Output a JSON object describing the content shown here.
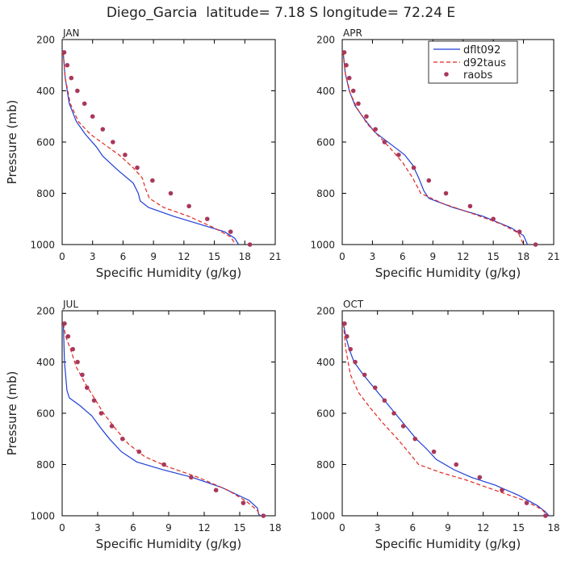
{
  "title": "Diego_Garcia  latitude= 7.18 S longitude= 72.24 E",
  "legend": {
    "entries": [
      "dflt092",
      "d92taus",
      "raobs"
    ]
  },
  "colors": {
    "dflt092": "#1f3fd6",
    "d92taus": "#e0281e",
    "raobs": "#a8385a",
    "axis": "#000000"
  },
  "chart_data": [
    {
      "type": "line",
      "panel": "JAN",
      "xlabel": "Specific Humidity (g/kg)",
      "ylabel": "Pressure (mb)",
      "xlim": [
        0,
        21
      ],
      "ylim": [
        200,
        1000
      ],
      "xticks": [
        0,
        3,
        6,
        9,
        12,
        15,
        18,
        21
      ],
      "yticks": [
        200,
        400,
        600,
        800,
        1000
      ],
      "series": [
        {
          "name": "dflt092",
          "style": "solid",
          "points": [
            [
              0.1,
              250
            ],
            [
              0.3,
              350
            ],
            [
              0.7,
              450
            ],
            [
              1.4,
              520
            ],
            [
              2.3,
              570
            ],
            [
              3.4,
              620
            ],
            [
              4.0,
              655
            ],
            [
              5.5,
              710
            ],
            [
              7.0,
              760
            ],
            [
              7.5,
              800
            ],
            [
              7.7,
              830
            ],
            [
              8.5,
              855
            ],
            [
              11,
              890
            ],
            [
              13.5,
              920
            ],
            [
              16.0,
              950
            ],
            [
              17.0,
              975
            ],
            [
              17.4,
              1000
            ]
          ]
        },
        {
          "name": "d92taus",
          "style": "dash",
          "points": [
            [
              0.1,
              250
            ],
            [
              0.3,
              350
            ],
            [
              0.8,
              450
            ],
            [
              1.6,
              520
            ],
            [
              2.8,
              570
            ],
            [
              4.2,
              610
            ],
            [
              5.6,
              650
            ],
            [
              7.0,
              700
            ],
            [
              7.9,
              740
            ],
            [
              8.2,
              780
            ],
            [
              8.6,
              820
            ],
            [
              10,
              855
            ],
            [
              12.5,
              890
            ],
            [
              15,
              935
            ],
            [
              16.6,
              970
            ],
            [
              17.1,
              1000
            ]
          ]
        },
        {
          "name": "raobs",
          "style": "dot",
          "points": [
            [
              0.2,
              250
            ],
            [
              0.5,
              300
            ],
            [
              0.9,
              350
            ],
            [
              1.5,
              400
            ],
            [
              2.2,
              450
            ],
            [
              3.0,
              500
            ],
            [
              4.0,
              550
            ],
            [
              5.0,
              600
            ],
            [
              6.2,
              650
            ],
            [
              7.4,
              700
            ],
            [
              8.9,
              750
            ],
            [
              10.7,
              800
            ],
            [
              12.5,
              850
            ],
            [
              14.3,
              900
            ],
            [
              16.6,
              950
            ],
            [
              18.5,
              1000
            ]
          ]
        }
      ]
    },
    {
      "type": "line",
      "panel": "APR",
      "xlabel": "Specific Humidity (g/kg)",
      "ylabel": "",
      "xlim": [
        0,
        21
      ],
      "ylim": [
        200,
        1000
      ],
      "xticks": [
        0,
        3,
        6,
        9,
        12,
        15,
        18,
        21
      ],
      "yticks": [
        200,
        400,
        600,
        800,
        1000
      ],
      "series": [
        {
          "name": "dflt092",
          "style": "solid",
          "points": [
            [
              0.1,
              250
            ],
            [
              0.3,
              330
            ],
            [
              0.7,
              400
            ],
            [
              1.3,
              460
            ],
            [
              2.2,
              510
            ],
            [
              3.2,
              560
            ],
            [
              4.2,
              590
            ],
            [
              5.2,
              620
            ],
            [
              6.2,
              650
            ],
            [
              7.0,
              690
            ],
            [
              7.6,
              740
            ],
            [
              8.1,
              790
            ],
            [
              8.6,
              820
            ],
            [
              11,
              855
            ],
            [
              14,
              890
            ],
            [
              16.8,
              935
            ],
            [
              18.0,
              965
            ],
            [
              18.4,
              1000
            ]
          ]
        },
        {
          "name": "d92taus",
          "style": "dash",
          "points": [
            [
              0.1,
              250
            ],
            [
              0.3,
              330
            ],
            [
              0.8,
              410
            ],
            [
              1.5,
              470
            ],
            [
              2.5,
              530
            ],
            [
              3.7,
              580
            ],
            [
              4.9,
              630
            ],
            [
              6.0,
              680
            ],
            [
              7.0,
              740
            ],
            [
              7.8,
              800
            ],
            [
              10,
              840
            ],
            [
              13,
              880
            ],
            [
              15.8,
              920
            ],
            [
              17.5,
              955
            ],
            [
              18.0,
              1000
            ]
          ]
        },
        {
          "name": "raobs",
          "style": "dot",
          "points": [
            [
              0.2,
              250
            ],
            [
              0.4,
              300
            ],
            [
              0.7,
              350
            ],
            [
              1.1,
              400
            ],
            [
              1.6,
              450
            ],
            [
              2.4,
              500
            ],
            [
              3.3,
              550
            ],
            [
              4.2,
              600
            ],
            [
              5.6,
              650
            ],
            [
              7.1,
              700
            ],
            [
              8.6,
              750
            ],
            [
              10.3,
              800
            ],
            [
              12.7,
              850
            ],
            [
              15.0,
              900
            ],
            [
              17.6,
              950
            ],
            [
              19.2,
              1000
            ]
          ]
        }
      ]
    },
    {
      "type": "line",
      "panel": "JUL",
      "xlabel": "Specific Humidity (g/kg)",
      "ylabel": "Pressure (mb)",
      "xlim": [
        0,
        18
      ],
      "ylim": [
        200,
        1000
      ],
      "xticks": [
        0,
        3,
        6,
        9,
        12,
        15,
        18
      ],
      "yticks": [
        200,
        400,
        600,
        800,
        1000
      ],
      "series": [
        {
          "name": "dflt092",
          "style": "solid",
          "points": [
            [
              0.1,
              250
            ],
            [
              0.2,
              400
            ],
            [
              0.4,
              510
            ],
            [
              0.6,
              540
            ],
            [
              1.5,
              570
            ],
            [
              2.5,
              610
            ],
            [
              3.3,
              660
            ],
            [
              4.0,
              700
            ],
            [
              5.0,
              750
            ],
            [
              6.3,
              790
            ],
            [
              8.5,
              820
            ],
            [
              11,
              850
            ],
            [
              13.5,
              890
            ],
            [
              15.8,
              940
            ],
            [
              16.5,
              970
            ],
            [
              16.6,
              995
            ],
            [
              16.8,
              1000
            ]
          ]
        },
        {
          "name": "d92taus",
          "style": "dash",
          "points": [
            [
              0.1,
              250
            ],
            [
              0.3,
              300
            ],
            [
              0.7,
              350
            ],
            [
              1.2,
              420
            ],
            [
              1.9,
              480
            ],
            [
              2.7,
              540
            ],
            [
              3.5,
              600
            ],
            [
              4.5,
              660
            ],
            [
              5.6,
              720
            ],
            [
              7.0,
              770
            ],
            [
              9.0,
              810
            ],
            [
              11.5,
              850
            ],
            [
              14,
              900
            ],
            [
              15.6,
              945
            ],
            [
              16.5,
              980
            ],
            [
              16.7,
              1000
            ]
          ]
        },
        {
          "name": "raobs",
          "style": "dot",
          "points": [
            [
              0.2,
              250
            ],
            [
              0.5,
              300
            ],
            [
              0.9,
              350
            ],
            [
              1.3,
              400
            ],
            [
              1.7,
              450
            ],
            [
              2.1,
              500
            ],
            [
              2.7,
              550
            ],
            [
              3.3,
              600
            ],
            [
              4.2,
              650
            ],
            [
              5.1,
              700
            ],
            [
              6.5,
              750
            ],
            [
              8.6,
              800
            ],
            [
              10.9,
              850
            ],
            [
              13.0,
              900
            ],
            [
              15.3,
              950
            ],
            [
              17.0,
              1000
            ]
          ]
        }
      ]
    },
    {
      "type": "line",
      "panel": "OCT",
      "xlabel": "Specific Humidity (g/kg)",
      "ylabel": "",
      "xlim": [
        0,
        18
      ],
      "ylim": [
        200,
        1000
      ],
      "xticks": [
        0,
        3,
        6,
        9,
        12,
        15,
        18
      ],
      "yticks": [
        200,
        400,
        600,
        800,
        1000
      ],
      "series": [
        {
          "name": "dflt092",
          "style": "solid",
          "points": [
            [
              0.1,
              250
            ],
            [
              0.3,
              300
            ],
            [
              0.6,
              350
            ],
            [
              1.0,
              400
            ],
            [
              1.8,
              450
            ],
            [
              2.7,
              500
            ],
            [
              3.6,
              550
            ],
            [
              4.5,
              600
            ],
            [
              5.4,
              650
            ],
            [
              6.3,
              700
            ],
            [
              7.2,
              740
            ],
            [
              8.0,
              780
            ],
            [
              9.5,
              820
            ],
            [
              11,
              850
            ],
            [
              13,
              880
            ],
            [
              15,
              920
            ],
            [
              16.6,
              960
            ],
            [
              17.3,
              985
            ],
            [
              17.6,
              1000
            ]
          ]
        },
        {
          "name": "d92taus",
          "style": "dash",
          "points": [
            [
              0.1,
              250
            ],
            [
              0.3,
              350
            ],
            [
              0.7,
              450
            ],
            [
              1.4,
              520
            ],
            [
              2.4,
              580
            ],
            [
              3.5,
              640
            ],
            [
              4.7,
              700
            ],
            [
              5.8,
              760
            ],
            [
              6.5,
              800
            ],
            [
              8.3,
              830
            ],
            [
              10.5,
              860
            ],
            [
              13,
              900
            ],
            [
              15.5,
              940
            ],
            [
              17.0,
              975
            ],
            [
              17.5,
              1000
            ]
          ]
        },
        {
          "name": "raobs",
          "style": "dot",
          "points": [
            [
              0.2,
              250
            ],
            [
              0.4,
              300
            ],
            [
              0.7,
              350
            ],
            [
              1.1,
              400
            ],
            [
              1.9,
              450
            ],
            [
              2.8,
              500
            ],
            [
              3.6,
              550
            ],
            [
              4.4,
              600
            ],
            [
              5.2,
              650
            ],
            [
              6.2,
              700
            ],
            [
              7.8,
              750
            ],
            [
              9.7,
              800
            ],
            [
              11.7,
              850
            ],
            [
              13.6,
              900
            ],
            [
              15.7,
              950
            ],
            [
              17.3,
              1000
            ]
          ]
        }
      ]
    }
  ]
}
